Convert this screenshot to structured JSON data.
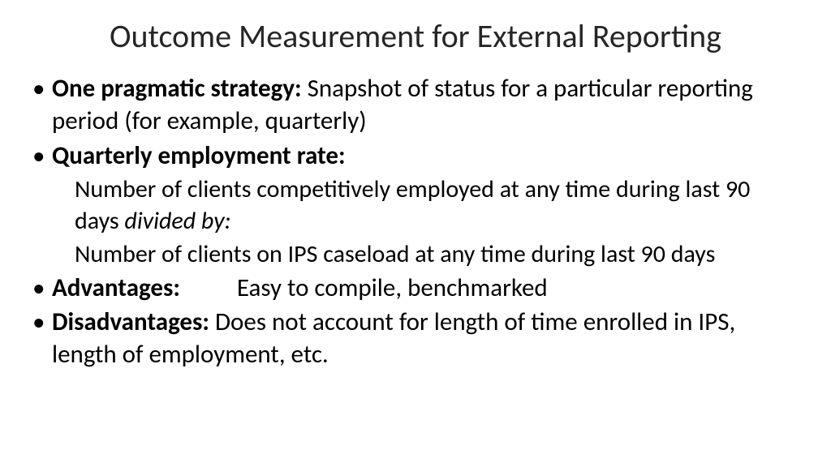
{
  "title": "Outcome Measurement for External Reporting",
  "bullets": {
    "strategy": {
      "label": "One pragmatic strategy:",
      "text": "  Snapshot of status for a particular reporting period (for example, quarterly)"
    },
    "quarterly": {
      "label": "Quarterly employment rate:",
      "sub1_a": "Number of clients competitively employed at any time during last 90 days ",
      "sub1_b": "divided by:",
      "sub2": "Number of clients on IPS caseload at any time during last 90 days"
    },
    "advantages": {
      "label": "Advantages:",
      "text": "Easy to compile, benchmarked"
    },
    "disadvantages": {
      "label": "Disadvantages:",
      "text": "  Does not account for length of time enrolled in IPS, length of employment, etc."
    }
  },
  "colors": {
    "background": "#ffffff",
    "text": "#000000",
    "title": "#262626"
  },
  "fontsize": {
    "title": 40,
    "body": 31,
    "sub": 30
  }
}
